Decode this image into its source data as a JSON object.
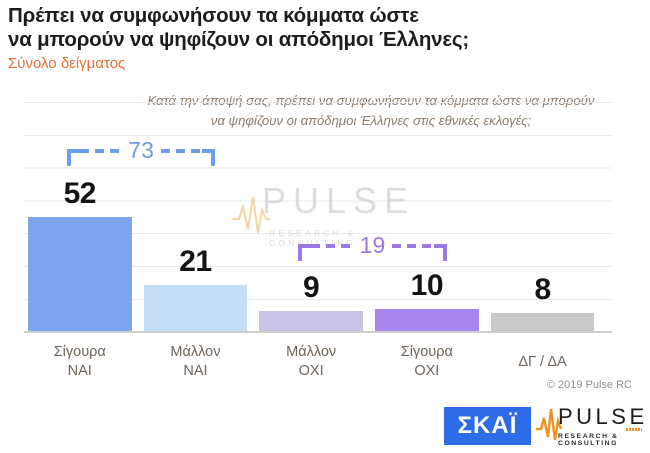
{
  "header": {
    "title": "Πρέπει να συμφωνήσουν τα κόμματα ώστε\nνα μπορούν να ψηφίζουν οι απόδημοι Έλληνες;",
    "subtitle": "Σύνολο δείγματος"
  },
  "question": "Κατά την άποψή σας, πρέπει να συμφωνήσουν τα κόμματα ώστε να μπορούν\nνα ψηφίζουν οι απόδημοι Έλληνες στις εθνικές εκλογές;",
  "chart_data": {
    "type": "bar",
    "title": "Πρέπει να συμφωνήσουν τα κόμματα ώστε να μπορούν να ψηφίζουν οι απόδημοι Έλληνες;",
    "categories": [
      "Σίγουρα\nΝΑΙ",
      "Μάλλον\nΝΑΙ",
      "Μάλλον\nΟΧΙ",
      "Σίγουρα\nΟΧΙ",
      "ΔΓ / ΔΑ"
    ],
    "values": [
      52,
      21,
      9,
      10,
      8
    ],
    "bar_colors": [
      "#7EA6F0",
      "#C4DFF5",
      "#CBC2E7",
      "#A685EF",
      "#C9C9C9"
    ],
    "value_labels": true,
    "grid": true,
    "legend": false,
    "aggregates": [
      {
        "label": "73",
        "value": 73,
        "from_bar": 0,
        "to_bar": 1,
        "color": "#6D9EEB"
      },
      {
        "label": "19",
        "value": 19,
        "from_bar": 2,
        "to_bar": 3,
        "color": "#9B79E2"
      }
    ]
  },
  "watermark": {
    "brand": "PULSE",
    "tagline": "RESEARCH & CONSULTING"
  },
  "copyright": "© 2019 Pulse RC",
  "footer": {
    "skai_logo_text": "ΣΚΑΪ",
    "pulse_logo_text": "PULSE",
    "pulse_logo_tagline": "RESEARCH & CONSULTING"
  },
  "colors": {
    "subtitle_orange": "#E2703A",
    "skai_blue": "#2D6BE8",
    "pulse_orange": "#F0921E",
    "bracket_blue": "#6D9EEB",
    "bracket_purple": "#9B79E2"
  }
}
